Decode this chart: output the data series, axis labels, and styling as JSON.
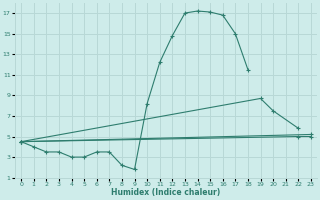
{
  "xlabel": "Humidex (Indice chaleur)",
  "bg_color": "#ceecea",
  "grid_color": "#b8d8d6",
  "line_color": "#2e7d6e",
  "xlim": [
    -0.5,
    23.5
  ],
  "ylim": [
    1,
    18
  ],
  "xticks": [
    0,
    1,
    2,
    3,
    4,
    5,
    6,
    7,
    8,
    9,
    10,
    11,
    12,
    13,
    14,
    15,
    16,
    17,
    18,
    19,
    20,
    21,
    22,
    23
  ],
  "yticks": [
    1,
    3,
    5,
    7,
    9,
    11,
    13,
    15,
    17
  ],
  "line1_x": [
    0,
    1,
    2,
    3,
    4,
    5,
    6,
    7,
    8,
    9,
    10,
    11,
    12,
    13,
    14,
    15,
    16,
    17,
    18
  ],
  "line1_y": [
    4.5,
    4.0,
    3.5,
    3.5,
    3.0,
    3.0,
    3.5,
    3.5,
    2.2,
    1.8,
    8.2,
    12.2,
    14.8,
    17.0,
    17.2,
    17.1,
    16.8,
    15.0,
    11.5
  ],
  "line2_x": [
    0,
    23
  ],
  "line2_y": [
    4.5,
    5.2
  ],
  "line3_x": [
    0,
    19,
    20,
    22
  ],
  "line3_y": [
    4.5,
    8.7,
    7.5,
    5.8
  ],
  "line4_x": [
    0,
    22,
    23
  ],
  "line4_y": [
    4.5,
    5.0,
    5.0
  ]
}
